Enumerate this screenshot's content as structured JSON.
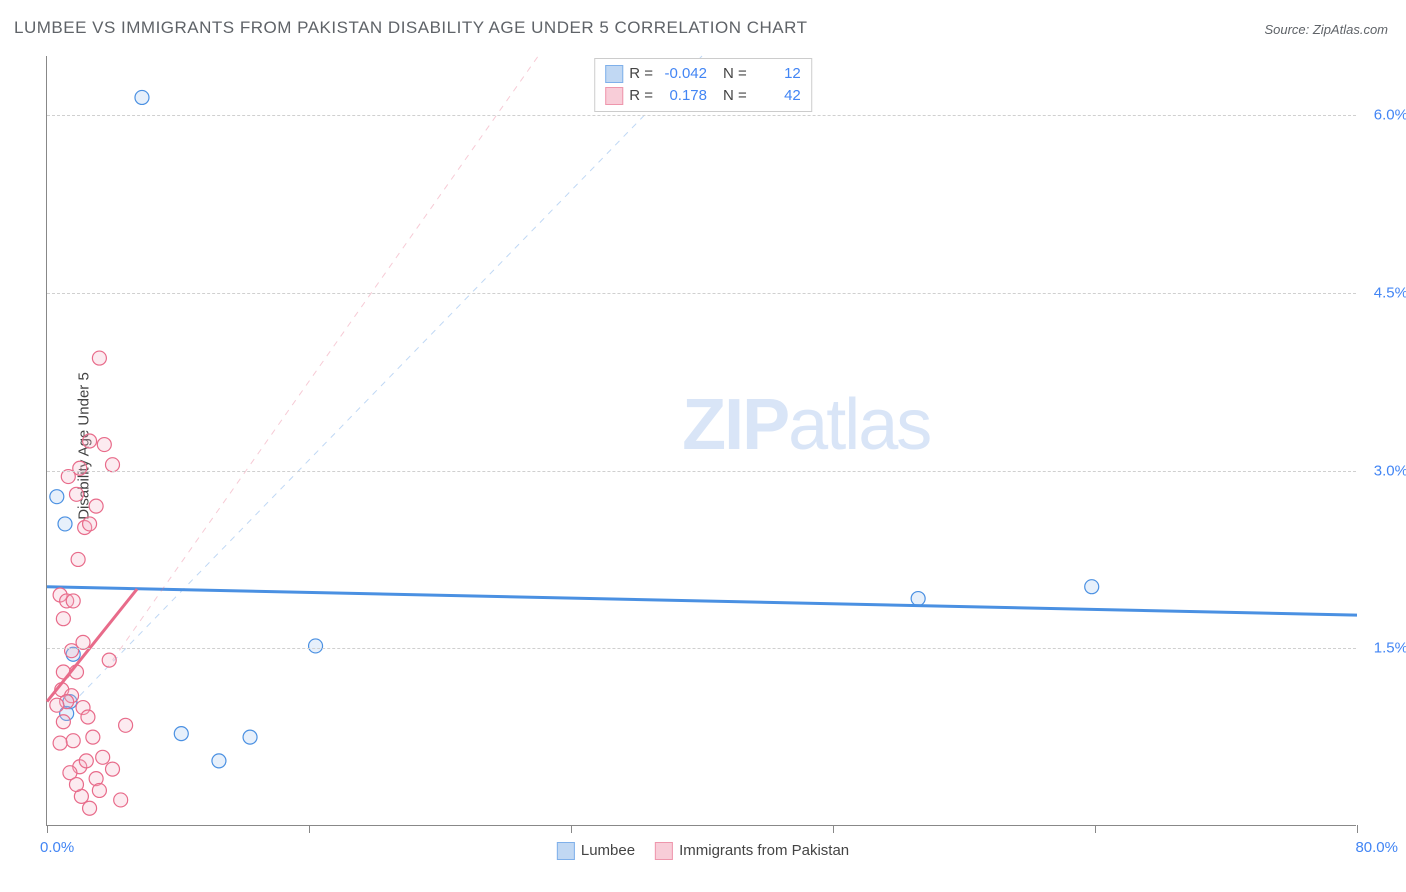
{
  "title": "LUMBEE VS IMMIGRANTS FROM PAKISTAN DISABILITY AGE UNDER 5 CORRELATION CHART",
  "source": "Source: ZipAtlas.com",
  "ylabel": "Disability Age Under 5",
  "watermark_bold": "ZIP",
  "watermark_rest": "atlas",
  "chart": {
    "type": "scatter",
    "xlim": [
      0,
      80
    ],
    "ylim": [
      0,
      6.5
    ],
    "x_min_label": "0.0%",
    "x_max_label": "80.0%",
    "y_ticks": [
      1.5,
      3.0,
      4.5,
      6.0
    ],
    "y_tick_labels": [
      "1.5%",
      "3.0%",
      "4.5%",
      "6.0%"
    ],
    "x_tick_positions": [
      0,
      16,
      32,
      48,
      64,
      80
    ],
    "grid_color": "#d0d0d0",
    "axis_color": "#888888",
    "background": "#ffffff",
    "marker_radius": 7,
    "marker_stroke_width": 1.2,
    "marker_fill_opacity": 0.28,
    "series": [
      {
        "name": "Lumbee",
        "color_stroke": "#4a90e2",
        "color_fill": "#a8c8ef",
        "R": "-0.042",
        "N": "12",
        "points": [
          [
            5.8,
            6.15
          ],
          [
            0.6,
            2.78
          ],
          [
            1.1,
            2.55
          ],
          [
            1.4,
            1.05
          ],
          [
            1.2,
            0.95
          ],
          [
            53.2,
            1.92
          ],
          [
            63.8,
            2.02
          ],
          [
            16.4,
            1.52
          ],
          [
            8.2,
            0.78
          ],
          [
            12.4,
            0.75
          ],
          [
            10.5,
            0.55
          ],
          [
            1.6,
            1.45
          ]
        ],
        "trend": {
          "y_left": 2.02,
          "y_right": 1.78,
          "width": 3,
          "dash": "none"
        },
        "guide": {
          "x1": 2,
          "y1": 1.1,
          "x2": 40,
          "y2": 6.5,
          "width": 1,
          "dash": "6 6",
          "opacity": 0.35
        }
      },
      {
        "name": "Immigrants from Pakistan",
        "color_stroke": "#e86b8a",
        "color_fill": "#f6b8c8",
        "R": "0.178",
        "N": "42",
        "points": [
          [
            3.2,
            3.95
          ],
          [
            2.6,
            3.25
          ],
          [
            3.5,
            3.22
          ],
          [
            2.0,
            3.02
          ],
          [
            4.0,
            3.05
          ],
          [
            1.3,
            2.95
          ],
          [
            3.0,
            2.7
          ],
          [
            1.8,
            2.8
          ],
          [
            2.3,
            2.52
          ],
          [
            2.6,
            2.55
          ],
          [
            1.9,
            2.25
          ],
          [
            0.8,
            1.95
          ],
          [
            1.2,
            1.9
          ],
          [
            1.0,
            1.75
          ],
          [
            1.6,
            1.9
          ],
          [
            1.5,
            1.48
          ],
          [
            3.8,
            1.4
          ],
          [
            1.0,
            1.3
          ],
          [
            1.8,
            1.3
          ],
          [
            2.2,
            1.55
          ],
          [
            0.9,
            1.15
          ],
          [
            1.5,
            1.1
          ],
          [
            1.2,
            1.05
          ],
          [
            0.6,
            1.02
          ],
          [
            1.0,
            0.88
          ],
          [
            2.2,
            1.0
          ],
          [
            4.8,
            0.85
          ],
          [
            1.6,
            0.72
          ],
          [
            0.8,
            0.7
          ],
          [
            2.8,
            0.75
          ],
          [
            3.4,
            0.58
          ],
          [
            3.0,
            0.4
          ],
          [
            2.0,
            0.5
          ],
          [
            1.4,
            0.45
          ],
          [
            2.1,
            0.25
          ],
          [
            4.5,
            0.22
          ],
          [
            4.0,
            0.48
          ],
          [
            2.6,
            0.15
          ],
          [
            2.4,
            0.55
          ],
          [
            3.2,
            0.3
          ],
          [
            1.8,
            0.35
          ],
          [
            2.5,
            0.92
          ]
        ],
        "trend": {
          "y_left": 1.05,
          "y_right_x": 5.5,
          "y_right": 2.0,
          "width": 3,
          "dash": "none"
        },
        "guide": {
          "x1": 4,
          "y1": 1.4,
          "x2": 30,
          "y2": 6.5,
          "width": 1,
          "dash": "6 6",
          "opacity": 0.35
        }
      }
    ]
  },
  "legend_top_template": {
    "R_label": "R =",
    "N_label": "N ="
  }
}
